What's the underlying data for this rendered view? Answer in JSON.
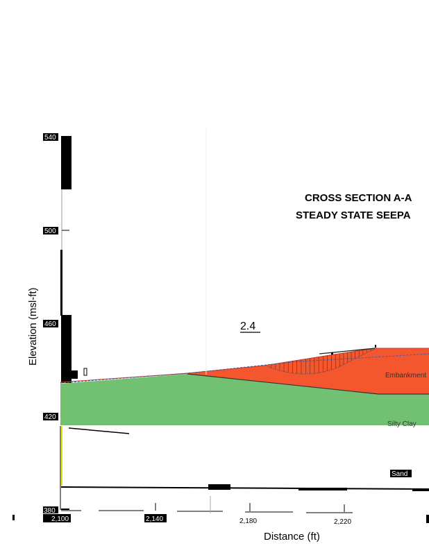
{
  "title": {
    "line1": "CROSS SECTION A-A",
    "line2": "STEADY STATE SEEPA"
  },
  "factor_of_safety": "2.4",
  "y_axis": {
    "label": "Elevation (msl-ft)",
    "ticks": [
      "540",
      "500",
      "460",
      "420",
      "380"
    ]
  },
  "x_axis": {
    "label": "Distance (ft)",
    "ticks": [
      "2,100",
      "2,140",
      "2,180",
      "2,220"
    ]
  },
  "materials": {
    "embankment": "Embankment",
    "silty_clay": "Silty Clay",
    "sand": "Sand"
  },
  "colors": {
    "embankment": "#f4572e",
    "silty_clay": "#72c172",
    "phreatic_line": "#3a5fb0"
  }
}
